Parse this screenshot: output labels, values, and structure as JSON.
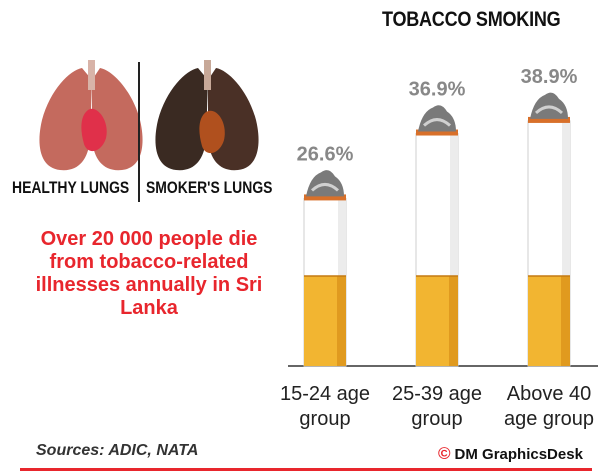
{
  "title": "TOBACCO SMOKING",
  "lungs": {
    "healthy_label": "HEALTHY LUNGS",
    "smoker_label": "SMOKER'S LUNGS",
    "healthy_color": "#c46a5e",
    "smoker_color": "#3a2a22"
  },
  "headline": "Over 20 000 people die from tobacco-related illnesses annually in Sri Lanka",
  "sources": "Sources: ADIC, NATA",
  "credit": {
    "symbol": "©",
    "text": "DM GraphicsDesk"
  },
  "colors": {
    "accent": "#e8262d",
    "filter": "#f2b531",
    "paper": "#ffffff",
    "ash": "#7a7a7a",
    "value_label": "#888888"
  },
  "chart_data": {
    "type": "bar",
    "title": "TOBACCO SMOKING",
    "categories": [
      "15-24 age group",
      "25-39 age group",
      "Above 40 age group"
    ],
    "category_lines": [
      [
        "15-24 age",
        "group"
      ],
      [
        "25-39 age",
        "group"
      ],
      [
        "Above 40",
        "age group"
      ]
    ],
    "values": [
      26.6,
      36.9,
      38.9
    ],
    "value_labels": [
      "26.6%",
      "36.9%",
      "38.9%"
    ],
    "ylim": [
      0,
      45
    ],
    "xlabel": "",
    "ylabel": "",
    "grid": false
  }
}
